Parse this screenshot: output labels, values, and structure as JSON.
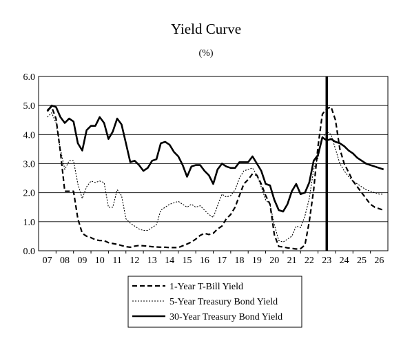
{
  "chart_data": {
    "type": "line",
    "title": "Yield Curve",
    "subtitle": "(%)",
    "xlabel": "",
    "ylabel": "",
    "x_ticks": [
      "07",
      "08",
      "09",
      "10",
      "11",
      "12",
      "13",
      "14",
      "15",
      "16",
      "17",
      "18",
      "19",
      "20",
      "21",
      "22",
      "23",
      "24",
      "25",
      "26"
    ],
    "ylim": [
      0,
      6
    ],
    "y_ticks": [
      "0.0",
      "1.0",
      "2.0",
      "3.0",
      "4.0",
      "5.0",
      "6.0"
    ],
    "grid": "horizontal",
    "legend_position": "bottom-center",
    "marker_line": {
      "x": 2023.0
    },
    "series": [
      {
        "name": "1-Year T-Bill Yield",
        "style": "dashed",
        "color": "#000000",
        "points": [
          [
            2007.0,
            4.85
          ],
          [
            2007.25,
            4.95
          ],
          [
            2007.5,
            4.55
          ],
          [
            2007.75,
            3.4
          ],
          [
            2008.0,
            2.05
          ],
          [
            2008.25,
            2.05
          ],
          [
            2008.5,
            2.05
          ],
          [
            2008.75,
            1.1
          ],
          [
            2009.0,
            0.6
          ],
          [
            2009.25,
            0.5
          ],
          [
            2009.5,
            0.45
          ],
          [
            2009.75,
            0.38
          ],
          [
            2010.0,
            0.35
          ],
          [
            2010.25,
            0.35
          ],
          [
            2010.5,
            0.28
          ],
          [
            2010.75,
            0.25
          ],
          [
            2011.0,
            0.22
          ],
          [
            2011.25,
            0.18
          ],
          [
            2011.5,
            0.14
          ],
          [
            2011.75,
            0.12
          ],
          [
            2012.0,
            0.16
          ],
          [
            2012.25,
            0.18
          ],
          [
            2012.5,
            0.17
          ],
          [
            2012.75,
            0.16
          ],
          [
            2013.0,
            0.14
          ],
          [
            2013.25,
            0.13
          ],
          [
            2013.5,
            0.12
          ],
          [
            2013.75,
            0.12
          ],
          [
            2014.0,
            0.11
          ],
          [
            2014.25,
            0.11
          ],
          [
            2014.5,
            0.11
          ],
          [
            2014.75,
            0.17
          ],
          [
            2015.0,
            0.23
          ],
          [
            2015.25,
            0.3
          ],
          [
            2015.5,
            0.4
          ],
          [
            2015.75,
            0.53
          ],
          [
            2016.0,
            0.6
          ],
          [
            2016.25,
            0.56
          ],
          [
            2016.5,
            0.6
          ],
          [
            2016.75,
            0.75
          ],
          [
            2017.0,
            0.85
          ],
          [
            2017.25,
            1.1
          ],
          [
            2017.5,
            1.25
          ],
          [
            2017.75,
            1.5
          ],
          [
            2018.0,
            1.9
          ],
          [
            2018.25,
            2.3
          ],
          [
            2018.5,
            2.45
          ],
          [
            2018.75,
            2.65
          ],
          [
            2019.0,
            2.6
          ],
          [
            2019.25,
            2.3
          ],
          [
            2019.5,
            1.9
          ],
          [
            2019.75,
            1.6
          ],
          [
            2020.0,
            0.55
          ],
          [
            2020.25,
            0.15
          ],
          [
            2020.5,
            0.13
          ],
          [
            2020.75,
            0.1
          ],
          [
            2021.0,
            0.08
          ],
          [
            2021.25,
            0.06
          ],
          [
            2021.5,
            0.07
          ],
          [
            2021.75,
            0.2
          ],
          [
            2022.0,
            1.0
          ],
          [
            2022.25,
            2.1
          ],
          [
            2022.5,
            3.6
          ],
          [
            2022.75,
            4.7
          ],
          [
            2023.0,
            4.9
          ],
          [
            2023.25,
            4.95
          ],
          [
            2023.5,
            4.5
          ],
          [
            2023.75,
            3.5
          ],
          [
            2024.0,
            3.0
          ],
          [
            2024.25,
            2.7
          ],
          [
            2024.5,
            2.4
          ],
          [
            2024.75,
            2.2
          ],
          [
            2025.0,
            2.0
          ],
          [
            2025.25,
            1.8
          ],
          [
            2025.5,
            1.6
          ],
          [
            2025.75,
            1.5
          ],
          [
            2026.0,
            1.45
          ],
          [
            2026.25,
            1.4
          ]
        ]
      },
      {
        "name": "5-Year Treasury Bond Yield",
        "style": "dotted",
        "color": "#000000",
        "points": [
          [
            2007.0,
            4.6
          ],
          [
            2007.25,
            4.75
          ],
          [
            2007.5,
            4.4
          ],
          [
            2007.75,
            3.5
          ],
          [
            2008.0,
            2.8
          ],
          [
            2008.25,
            3.1
          ],
          [
            2008.5,
            3.1
          ],
          [
            2008.75,
            2.3
          ],
          [
            2009.0,
            1.8
          ],
          [
            2009.25,
            2.2
          ],
          [
            2009.5,
            2.4
          ],
          [
            2009.75,
            2.35
          ],
          [
            2010.0,
            2.4
          ],
          [
            2010.25,
            2.35
          ],
          [
            2010.5,
            1.5
          ],
          [
            2010.75,
            1.5
          ],
          [
            2011.0,
            2.1
          ],
          [
            2011.25,
            1.9
          ],
          [
            2011.5,
            1.1
          ],
          [
            2011.75,
            0.95
          ],
          [
            2012.0,
            0.85
          ],
          [
            2012.25,
            0.75
          ],
          [
            2012.5,
            0.7
          ],
          [
            2012.75,
            0.7
          ],
          [
            2013.0,
            0.8
          ],
          [
            2013.25,
            0.9
          ],
          [
            2013.5,
            1.4
          ],
          [
            2013.75,
            1.5
          ],
          [
            2014.0,
            1.6
          ],
          [
            2014.25,
            1.65
          ],
          [
            2014.5,
            1.7
          ],
          [
            2014.75,
            1.6
          ],
          [
            2015.0,
            1.5
          ],
          [
            2015.25,
            1.6
          ],
          [
            2015.5,
            1.5
          ],
          [
            2015.75,
            1.55
          ],
          [
            2016.0,
            1.4
          ],
          [
            2016.25,
            1.25
          ],
          [
            2016.5,
            1.15
          ],
          [
            2016.75,
            1.55
          ],
          [
            2017.0,
            1.95
          ],
          [
            2017.25,
            1.85
          ],
          [
            2017.5,
            1.9
          ],
          [
            2017.75,
            2.1
          ],
          [
            2018.0,
            2.5
          ],
          [
            2018.25,
            2.75
          ],
          [
            2018.5,
            2.8
          ],
          [
            2018.75,
            2.85
          ],
          [
            2019.0,
            2.6
          ],
          [
            2019.25,
            2.2
          ],
          [
            2019.5,
            1.75
          ],
          [
            2019.75,
            1.6
          ],
          [
            2020.0,
            0.9
          ],
          [
            2020.25,
            0.35
          ],
          [
            2020.5,
            0.3
          ],
          [
            2020.75,
            0.4
          ],
          [
            2021.0,
            0.5
          ],
          [
            2021.25,
            0.85
          ],
          [
            2021.5,
            0.8
          ],
          [
            2021.75,
            1.2
          ],
          [
            2022.0,
            1.8
          ],
          [
            2022.25,
            2.8
          ],
          [
            2022.5,
            3.2
          ],
          [
            2022.75,
            3.9
          ],
          [
            2023.0,
            4.1
          ],
          [
            2023.25,
            4.0
          ],
          [
            2023.5,
            3.5
          ],
          [
            2023.75,
            3.0
          ],
          [
            2024.0,
            2.75
          ],
          [
            2024.25,
            2.55
          ],
          [
            2024.5,
            2.4
          ],
          [
            2024.75,
            2.3
          ],
          [
            2025.0,
            2.2
          ],
          [
            2025.25,
            2.1
          ],
          [
            2025.5,
            2.05
          ],
          [
            2025.75,
            2.0
          ],
          [
            2026.0,
            1.95
          ],
          [
            2026.25,
            1.95
          ]
        ]
      },
      {
        "name": "30-Year Treasury Bond Yield",
        "style": "solid",
        "color": "#000000",
        "points": [
          [
            2007.0,
            4.8
          ],
          [
            2007.25,
            5.0
          ],
          [
            2007.5,
            4.95
          ],
          [
            2007.75,
            4.6
          ],
          [
            2008.0,
            4.4
          ],
          [
            2008.25,
            4.55
          ],
          [
            2008.5,
            4.45
          ],
          [
            2008.75,
            3.7
          ],
          [
            2009.0,
            3.45
          ],
          [
            2009.25,
            4.15
          ],
          [
            2009.5,
            4.3
          ],
          [
            2009.75,
            4.3
          ],
          [
            2010.0,
            4.6
          ],
          [
            2010.25,
            4.4
          ],
          [
            2010.5,
            3.85
          ],
          [
            2010.75,
            4.1
          ],
          [
            2011.0,
            4.55
          ],
          [
            2011.25,
            4.35
          ],
          [
            2011.5,
            3.7
          ],
          [
            2011.75,
            3.05
          ],
          [
            2012.0,
            3.1
          ],
          [
            2012.25,
            2.95
          ],
          [
            2012.5,
            2.75
          ],
          [
            2012.75,
            2.85
          ],
          [
            2013.0,
            3.1
          ],
          [
            2013.25,
            3.15
          ],
          [
            2013.5,
            3.7
          ],
          [
            2013.75,
            3.75
          ],
          [
            2014.0,
            3.65
          ],
          [
            2014.25,
            3.4
          ],
          [
            2014.5,
            3.25
          ],
          [
            2014.75,
            2.95
          ],
          [
            2015.0,
            2.55
          ],
          [
            2015.25,
            2.9
          ],
          [
            2015.5,
            2.95
          ],
          [
            2015.75,
            2.95
          ],
          [
            2016.0,
            2.75
          ],
          [
            2016.25,
            2.6
          ],
          [
            2016.5,
            2.3
          ],
          [
            2016.75,
            2.8
          ],
          [
            2017.0,
            3.0
          ],
          [
            2017.25,
            2.9
          ],
          [
            2017.5,
            2.85
          ],
          [
            2017.75,
            2.85
          ],
          [
            2018.0,
            3.05
          ],
          [
            2018.25,
            3.05
          ],
          [
            2018.5,
            3.05
          ],
          [
            2018.75,
            3.25
          ],
          [
            2019.0,
            3.0
          ],
          [
            2019.25,
            2.75
          ],
          [
            2019.5,
            2.3
          ],
          [
            2019.75,
            2.25
          ],
          [
            2020.0,
            1.75
          ],
          [
            2020.25,
            1.4
          ],
          [
            2020.5,
            1.35
          ],
          [
            2020.75,
            1.6
          ],
          [
            2021.0,
            2.05
          ],
          [
            2021.25,
            2.3
          ],
          [
            2021.5,
            1.95
          ],
          [
            2021.75,
            2.0
          ],
          [
            2022.0,
            2.35
          ],
          [
            2022.25,
            3.1
          ],
          [
            2022.5,
            3.3
          ],
          [
            2022.75,
            3.9
          ],
          [
            2023.0,
            3.8
          ],
          [
            2023.25,
            3.85
          ],
          [
            2023.5,
            3.75
          ],
          [
            2023.75,
            3.7
          ],
          [
            2024.0,
            3.6
          ],
          [
            2024.25,
            3.45
          ],
          [
            2024.5,
            3.35
          ],
          [
            2024.75,
            3.2
          ],
          [
            2025.0,
            3.1
          ],
          [
            2025.25,
            3.0
          ],
          [
            2025.5,
            2.95
          ],
          [
            2025.75,
            2.9
          ],
          [
            2026.0,
            2.85
          ],
          [
            2026.25,
            2.8
          ]
        ]
      }
    ]
  }
}
